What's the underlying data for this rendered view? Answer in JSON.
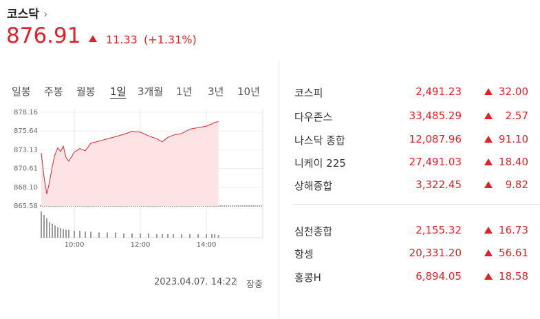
{
  "header": {
    "name": "코스닥",
    "price": "876.91",
    "change": "11.33",
    "change_rate": "(+1.31%)"
  },
  "tabs": [
    "일봉",
    "주봉",
    "월봉",
    "1일",
    "3개월",
    "1년",
    "3년",
    "10년"
  ],
  "chart_data": {
    "type": "line",
    "x": [
      "09:00",
      "09:05",
      "09:10",
      "09:15",
      "09:20",
      "09:25",
      "09:30",
      "09:35",
      "09:40",
      "09:45",
      "09:50",
      "10:00",
      "10:10",
      "10:20",
      "10:30",
      "10:45",
      "11:00",
      "11:15",
      "11:30",
      "11:45",
      "12:00",
      "12:15",
      "12:30",
      "12:40",
      "12:50",
      "13:00",
      "13:15",
      "13:30",
      "13:45",
      "14:00",
      "14:10",
      "14:15",
      "14:22"
    ],
    "series": [
      {
        "color": "#d6272e",
        "values": [
          872.7,
          869.5,
          867.2,
          868.8,
          870.9,
          872.5,
          873.4,
          872.9,
          873.6,
          872.1,
          871.6,
          872.8,
          873.3,
          873.0,
          874.0,
          874.3,
          874.6,
          874.9,
          875.2,
          875.6,
          875.5,
          875.0,
          874.6,
          874.2,
          874.8,
          875.1,
          875.3,
          875.9,
          876.1,
          876.3,
          876.6,
          876.8,
          876.91
        ]
      }
    ],
    "volume": {
      "color": "#999999",
      "values": [
        30,
        26,
        22,
        18,
        16,
        14,
        12,
        11,
        10,
        9,
        9,
        8,
        8,
        7,
        7,
        6,
        6,
        6,
        5,
        5,
        5,
        5,
        4,
        4,
        4,
        4,
        4,
        4,
        4,
        4,
        4,
        4,
        3
      ]
    },
    "xlim": [
      "09:00",
      "15:30"
    ],
    "xticks": [
      "10:00",
      "12:00",
      "14:00"
    ],
    "ylim": [
      865.58,
      878.16
    ],
    "yticks": [
      878.16,
      875.64,
      873.13,
      870.61,
      {
        "value": 868.1,
        "label": "868.10"
      },
      865.58
    ],
    "grid": true
  },
  "timestamp": "2023.04.07. 14:22",
  "status": "장중",
  "indices": [
    [
      {
        "name": "코스피",
        "value": "2,491.23",
        "change": "32.00"
      },
      {
        "name": "다우존스",
        "value": "33,485.29",
        "change": "2.57"
      },
      {
        "name": "나스닥 종합",
        "value": "12,087.96",
        "change": "91.10"
      },
      {
        "name": "니케이 225",
        "value": "27,491.03",
        "change": "18.40"
      },
      {
        "name": "상해종합",
        "value": "3,322.45",
        "change": "9.82"
      }
    ],
    [
      {
        "name": "심천종합",
        "value": "2,155.32",
        "change": "16.73"
      },
      {
        "name": "항셍",
        "value": "20,331.20",
        "change": "56.61"
      },
      {
        "name": "홍콩H",
        "value": "6,894.05",
        "change": "18.58"
      }
    ]
  ]
}
